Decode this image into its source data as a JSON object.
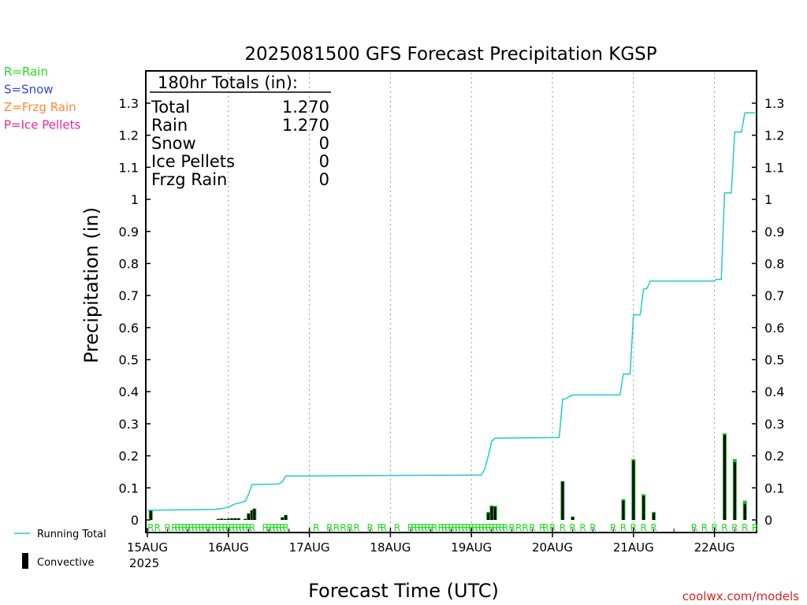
{
  "title": "2025081500 GFS Forecast Precipitation KGSP",
  "watermark": "coolwx.com/models",
  "legend_types": [
    {
      "text": "R=Rain",
      "color": "#22dd22"
    },
    {
      "text": "S=Snow",
      "color": "#3344ee"
    },
    {
      "text": "Z=Frzg Rain",
      "color": "#ff8833"
    },
    {
      "text": "P=Ice Pellets",
      "color": "#ee2299"
    }
  ],
  "legend_series": [
    {
      "text": "Running Total",
      "color": "#22cccc",
      "icon": "line"
    },
    {
      "text": "Convective",
      "color": "#000000",
      "icon": "bar"
    }
  ],
  "totals": {
    "heading": "180hr Totals (in):",
    "rows": [
      {
        "label": "Total",
        "value": "1.270"
      },
      {
        "label": "Rain",
        "value": "1.270"
      },
      {
        "label": "Snow",
        "value": "0"
      },
      {
        "label": "Ice Pellets",
        "value": "0"
      },
      {
        "label": "Frzg Rain",
        "value": "0"
      }
    ]
  },
  "colors": {
    "running_total": "#22cccc",
    "precip_bar": "#22bb22",
    "convective_bar": "#000000",
    "rain_marker": "#22dd22",
    "watermark": "#dd2222",
    "grid": "#999999"
  },
  "chart_data": {
    "type": "bar",
    "ylabel": "Precipitation (in)",
    "xlabel": "Forecast Time (UTC)",
    "year_label": "2025",
    "ylim": [
      0,
      1.3
    ],
    "xlim_hours": [
      0,
      180
    ],
    "x_ticks": [
      {
        "hour": 0,
        "label": "15AUG"
      },
      {
        "hour": 24,
        "label": "16AUG"
      },
      {
        "hour": 48,
        "label": "17AUG"
      },
      {
        "hour": 72,
        "label": "18AUG"
      },
      {
        "hour": 96,
        "label": "19AUG"
      },
      {
        "hour": 120,
        "label": "20AUG"
      },
      {
        "hour": 144,
        "label": "21AUG"
      },
      {
        "hour": 168,
        "label": "22AUG"
      }
    ],
    "y_ticks": [
      0,
      0.1,
      0.2,
      0.3,
      0.4,
      0.5,
      0.6,
      0.7,
      0.8,
      0.9,
      1,
      1.1,
      1.2,
      1.3
    ],
    "grid_vertical_dotted": true,
    "precip_bars": [
      {
        "hour": 1,
        "total": 0.03,
        "convective": 0.03
      },
      {
        "hour": 21,
        "total": 0.003,
        "convective": 0.003
      },
      {
        "hour": 22,
        "total": 0.004,
        "convective": 0.004
      },
      {
        "hour": 23,
        "total": 0.003,
        "convective": 0.003
      },
      {
        "hour": 24,
        "total": 0.004,
        "convective": 0.004
      },
      {
        "hour": 25,
        "total": 0.005,
        "convective": 0.005
      },
      {
        "hour": 26,
        "total": 0.005,
        "convective": 0.005
      },
      {
        "hour": 27,
        "total": 0.005,
        "convective": 0.005
      },
      {
        "hour": 29,
        "total": 0.003,
        "convective": 0.003
      },
      {
        "hour": 30,
        "total": 0.02,
        "convective": 0.02
      },
      {
        "hour": 31,
        "total": 0.03,
        "convective": 0.03
      },
      {
        "hour": 31.7,
        "total": 0.035,
        "convective": 0.035
      },
      {
        "hour": 40,
        "total": 0.008,
        "convective": 0.008
      },
      {
        "hour": 41,
        "total": 0.015,
        "convective": 0.015
      },
      {
        "hour": 101,
        "total": 0.025,
        "convective": 0.022
      },
      {
        "hour": 102,
        "total": 0.045,
        "convective": 0.042
      },
      {
        "hour": 103,
        "total": 0.044,
        "convective": 0.04
      },
      {
        "hour": 123,
        "total": 0.12,
        "convective": 0.12
      },
      {
        "hour": 126,
        "total": 0.01,
        "convective": 0.01
      },
      {
        "hour": 141,
        "total": 0.065,
        "convective": 0.06
      },
      {
        "hour": 144,
        "total": 0.19,
        "convective": 0.185
      },
      {
        "hour": 147,
        "total": 0.08,
        "convective": 0.075
      },
      {
        "hour": 150,
        "total": 0.025,
        "convective": 0.022
      },
      {
        "hour": 171,
        "total": 0.27,
        "convective": 0.265
      },
      {
        "hour": 174,
        "total": 0.19,
        "convective": 0.18
      },
      {
        "hour": 177,
        "total": 0.06,
        "convective": 0.05
      }
    ],
    "running_total": [
      {
        "hour": 0,
        "value": 0.03
      },
      {
        "hour": 20,
        "value": 0.033
      },
      {
        "hour": 22,
        "value": 0.035
      },
      {
        "hour": 24,
        "value": 0.04
      },
      {
        "hour": 25,
        "value": 0.045
      },
      {
        "hour": 26,
        "value": 0.05
      },
      {
        "hour": 28,
        "value": 0.055
      },
      {
        "hour": 29,
        "value": 0.058
      },
      {
        "hour": 30,
        "value": 0.08
      },
      {
        "hour": 31,
        "value": 0.11
      },
      {
        "hour": 39,
        "value": 0.112
      },
      {
        "hour": 40,
        "value": 0.12
      },
      {
        "hour": 41,
        "value": 0.137
      },
      {
        "hour": 99,
        "value": 0.14
      },
      {
        "hour": 100,
        "value": 0.16
      },
      {
        "hour": 101,
        "value": 0.2
      },
      {
        "hour": 102,
        "value": 0.245
      },
      {
        "hour": 103,
        "value": 0.255
      },
      {
        "hour": 122,
        "value": 0.257
      },
      {
        "hour": 123,
        "value": 0.377
      },
      {
        "hour": 124,
        "value": 0.378
      },
      {
        "hour": 125,
        "value": 0.385
      },
      {
        "hour": 126,
        "value": 0.39
      },
      {
        "hour": 140,
        "value": 0.39
      },
      {
        "hour": 141,
        "value": 0.455
      },
      {
        "hour": 143,
        "value": 0.455
      },
      {
        "hour": 144,
        "value": 0.64
      },
      {
        "hour": 146,
        "value": 0.64
      },
      {
        "hour": 147,
        "value": 0.72
      },
      {
        "hour": 148,
        "value": 0.722
      },
      {
        "hour": 149,
        "value": 0.745
      },
      {
        "hour": 168,
        "value": 0.745
      },
      {
        "hour": 168.5,
        "value": 0.75
      },
      {
        "hour": 170,
        "value": 0.75
      },
      {
        "hour": 171,
        "value": 1.02
      },
      {
        "hour": 173,
        "value": 1.02
      },
      {
        "hour": 174,
        "value": 1.21
      },
      {
        "hour": 176,
        "value": 1.21
      },
      {
        "hour": 177,
        "value": 1.27
      },
      {
        "hour": 180,
        "value": 1.27
      }
    ],
    "type_markers": {
      "label": "R",
      "hours": [
        1,
        3,
        6,
        8,
        9,
        10,
        11,
        12,
        13,
        14,
        15,
        16,
        17,
        18,
        19,
        20,
        21,
        22,
        23,
        24,
        25,
        26,
        27,
        28,
        29,
        30,
        31,
        35,
        36,
        37,
        38,
        39,
        40,
        41,
        50,
        54,
        56,
        58,
        60,
        62,
        66,
        69,
        70,
        74,
        78,
        79,
        80,
        81,
        82,
        83,
        84,
        85,
        87,
        88,
        89,
        90,
        91,
        92,
        93,
        94,
        95,
        96,
        97,
        98,
        99,
        100,
        101,
        102,
        103,
        104,
        105,
        106,
        108,
        110,
        112,
        114,
        117,
        118,
        120,
        123,
        126,
        129,
        132,
        138,
        141,
        144,
        147,
        150,
        162,
        165,
        168,
        171,
        174,
        177,
        180
      ]
    }
  }
}
